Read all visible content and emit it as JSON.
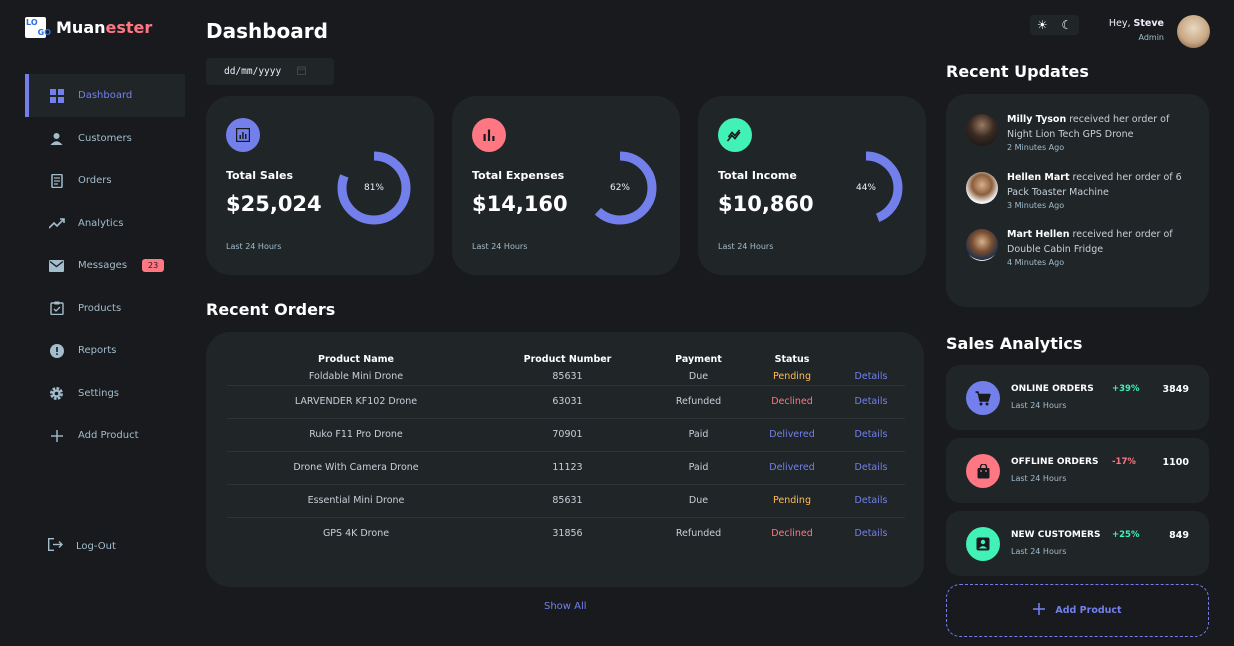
{
  "brand": {
    "logo_tl": "LO",
    "logo_br": "GO",
    "name_prefix": "Muan",
    "name_accent": "ester"
  },
  "sidebar": {
    "items": [
      {
        "label": "Dashboard",
        "icon": "grid-icon"
      },
      {
        "label": "Customers",
        "icon": "person-icon"
      },
      {
        "label": "Orders",
        "icon": "receipt-icon"
      },
      {
        "label": "Analytics",
        "icon": "trending-icon"
      },
      {
        "label": "Messages",
        "icon": "mail-icon",
        "badge": "23"
      },
      {
        "label": "Products",
        "icon": "inventory-icon"
      },
      {
        "label": "Reports",
        "icon": "report-icon"
      },
      {
        "label": "Settings",
        "icon": "gear-icon"
      },
      {
        "label": "Add Product",
        "icon": "plus-icon"
      }
    ],
    "logout": "Log-Out"
  },
  "header": {
    "title": "Dashboard",
    "date_placeholder": "dd/mm/yyyy"
  },
  "insights": [
    {
      "label": "Total Sales",
      "value": "$25,024",
      "percent": 81,
      "percent_label": "81%",
      "sub": "Last 24 Hours",
      "color": "#7380ec"
    },
    {
      "label": "Total Expenses",
      "value": "$14,160",
      "percent": 62,
      "percent_label": "62%",
      "sub": "Last 24 Hours",
      "color": "#ff7782"
    },
    {
      "label": "Total Income",
      "value": "$10,860",
      "percent": 44,
      "percent_label": "44%",
      "sub": "Last 24 Hours",
      "color": "#41f1b6"
    }
  ],
  "recent_orders": {
    "title": "Recent Orders",
    "columns": [
      "Product Name",
      "Product Number",
      "Payment",
      "Status",
      ""
    ],
    "rows": [
      {
        "name": "Foldable Mini Drone",
        "number": "85631",
        "payment": "Due",
        "status": "Pending",
        "action": "Details"
      },
      {
        "name": "LARVENDER KF102 Drone",
        "number": "63031",
        "payment": "Refunded",
        "status": "Declined",
        "action": "Details"
      },
      {
        "name": "Ruko F11 Pro Drone",
        "number": "70901",
        "payment": "Paid",
        "status": "Delivered",
        "action": "Details"
      },
      {
        "name": "Drone With Camera Drone",
        "number": "11123",
        "payment": "Paid",
        "status": "Delivered",
        "action": "Details"
      },
      {
        "name": "Essential Mini Drone",
        "number": "85631",
        "payment": "Due",
        "status": "Pending",
        "action": "Details"
      },
      {
        "name": "GPS 4K Drone",
        "number": "31856",
        "payment": "Refunded",
        "status": "Declined",
        "action": "Details"
      }
    ],
    "show_all": "Show All"
  },
  "profile": {
    "greeting": "Hey,",
    "name": "Steve",
    "role": "Admin"
  },
  "theme_toggle": {
    "light": "☀",
    "dark": "☾"
  },
  "recent_updates": {
    "title": "Recent Updates",
    "items": [
      {
        "name": "Milly Tyson",
        "text": " received her order of Night Lion Tech GPS Drone",
        "time": "2 Minutes Ago"
      },
      {
        "name": "Hellen Mart",
        "text": " received her order of 6 Pack Toaster Machine",
        "time": "3 Minutes Ago"
      },
      {
        "name": "Mart Hellen",
        "text": " received her order of Double Cabin Fridge",
        "time": "4 Minutes Ago"
      }
    ]
  },
  "sales_analytics": {
    "title": "Sales Analytics",
    "items": [
      {
        "name": "ONLINE ORDERS",
        "sub": "Last 24 Hours",
        "percent": "+39%",
        "value": "3849",
        "icon": "cart-icon",
        "color": "#7380ec",
        "pct_color": "#41f1b6"
      },
      {
        "name": "OFFLINE ORDERS",
        "sub": "Last 24 Hours",
        "percent": "-17%",
        "value": "1100",
        "icon": "bag-icon",
        "color": "#ff7782",
        "pct_color": "#ff7782"
      },
      {
        "name": "NEW CUSTOMERS",
        "sub": "Last 24 Hours",
        "percent": "+25%",
        "value": "849",
        "icon": "person-icon",
        "color": "#41f1b6",
        "pct_color": "#41f1b6"
      }
    ],
    "add_product": "Add Product"
  }
}
